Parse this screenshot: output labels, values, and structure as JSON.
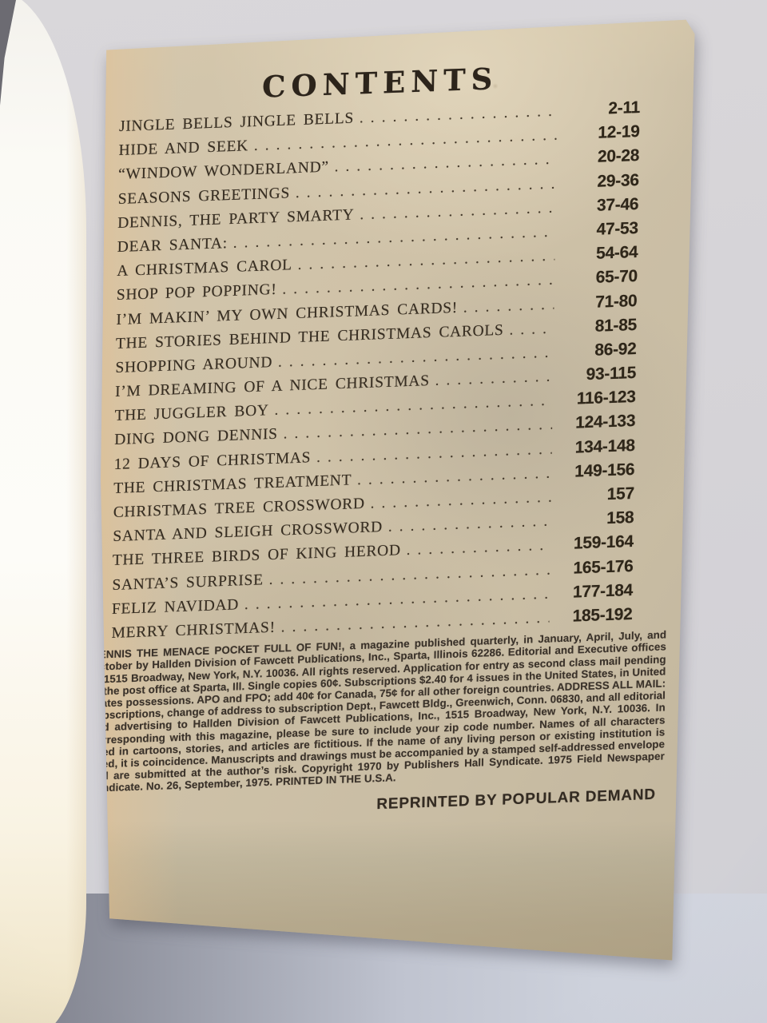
{
  "page": {
    "title": "CONTENTS",
    "toc": [
      {
        "title": "JINGLE BELLS JINGLE BELLS",
        "pages": "2-11"
      },
      {
        "title": "HIDE AND SEEK",
        "pages": "12-19"
      },
      {
        "title": "“WINDOW WONDERLAND”",
        "pages": "20-28"
      },
      {
        "title": "SEASONS GREETINGS",
        "pages": "29-36"
      },
      {
        "title": "DENNIS, THE PARTY SMARTY",
        "pages": "37-46"
      },
      {
        "title": "DEAR SANTA:",
        "pages": "47-53"
      },
      {
        "title": "A CHRISTMAS CAROL",
        "pages": "54-64"
      },
      {
        "title": "SHOP POP POPPING!",
        "pages": "65-70"
      },
      {
        "title": "I’M MAKIN’ MY OWN CHRISTMAS CARDS!",
        "pages": "71-80"
      },
      {
        "title": "THE STORIES BEHIND THE CHRISTMAS CAROLS",
        "pages": "81-85"
      },
      {
        "title": "SHOPPING AROUND",
        "pages": "86-92"
      },
      {
        "title": "I’M DREAMING OF A NICE CHRISTMAS",
        "pages": "93-115"
      },
      {
        "title": "THE JUGGLER BOY",
        "pages": "116-123"
      },
      {
        "title": "DING DONG DENNIS",
        "pages": "124-133"
      },
      {
        "title": "12 DAYS OF CHRISTMAS",
        "pages": "134-148"
      },
      {
        "title": "THE CHRISTMAS TREATMENT",
        "pages": "149-156"
      },
      {
        "title": "CHRISTMAS TREE CROSSWORD",
        "pages": "157"
      },
      {
        "title": "SANTA AND SLEIGH CROSSWORD",
        "pages": "158"
      },
      {
        "title": "THE THREE BIRDS OF KING HEROD",
        "pages": "159-164"
      },
      {
        "title": "SANTA’S SURPRISE",
        "pages": "165-176"
      },
      {
        "title": "FELIZ NAVIDAD",
        "pages": "177-184"
      },
      {
        "title": "MERRY CHRISTMAS!",
        "pages": "185-192"
      }
    ],
    "colophon": {
      "lead": "DENNIS THE MENACE POCKET FULL OF FUN!,",
      "body": " a magazine published quarterly, in January, April, July, and October by Hallden Division of Fawcett Publications, Inc., Sparta, Illinois 62286. Editorial and Executive offices at 1515 Broadway, New York, N.Y. 10036. All rights reserved. Application for entry as second class mail pending at the post office at Sparta, Ill. Single copies 60¢. Subscriptions $2.40 for 4 issues in the United States, in United States possessions. APO and FPO; add 40¢ for Canada, 75¢ for all other foreign countries. ADDRESS ALL MAIL: subscriptions, change of address to subscription Dept., Fawcett Bldg., Greenwich, Conn. 06830, and all editorial and advertising to Hallden Division of Fawcett Publications, Inc., 1515 Broadway, New York, N.Y. 10036. In corresponding with this magazine, please be sure to include your zip code number. Names of all characters used in cartoons, stories, and articles are fictitious. If the name of any living person or existing institution is used, it is coincidence. Manuscripts and drawings must be accompanied by a stamped self-addressed envelope and are submitted at the author’s risk. Copyright 1970 by Publishers Hall Syndicate. 1975 Field Newspaper Syndicate. No. 26, September, 1975. PRINTED IN THE U.S.A."
    },
    "reprint_notice": "REPRINTED BY POPULAR DEMAND"
  },
  "colors": {
    "paper": "#cdc0a7",
    "ink": "#352c21",
    "background": "#d5d3d7",
    "table_shadow": "#7d7f8a",
    "page_stack": "#fdfcf8"
  }
}
